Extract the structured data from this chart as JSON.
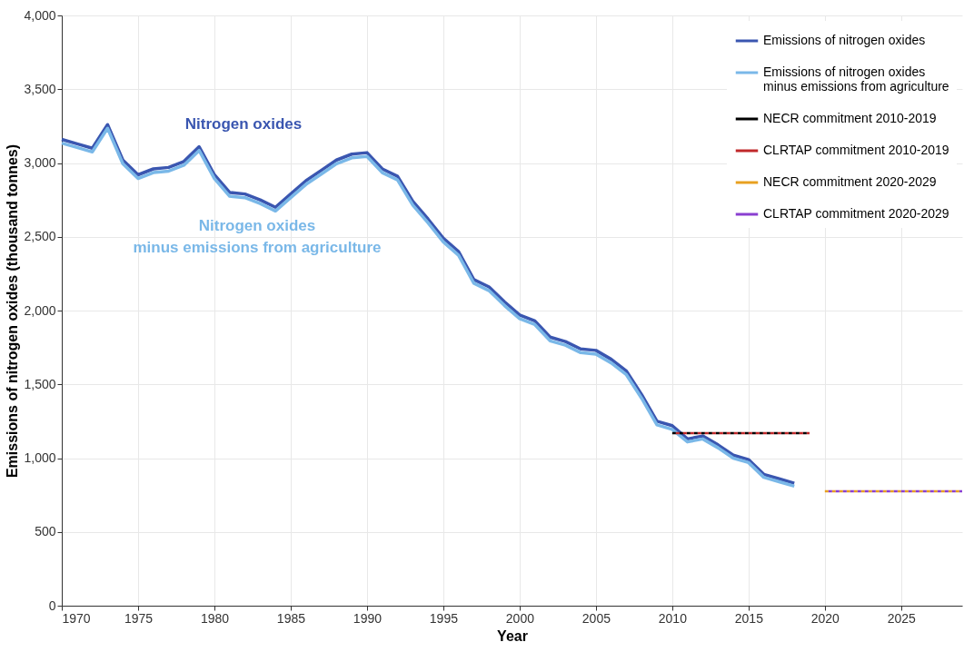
{
  "chart_data": {
    "type": "line",
    "xlabel": "Year",
    "ylabel": "Emissions of nitrogen oxides (thousand tonnes)",
    "xlim": [
      1970,
      2029
    ],
    "xticks": [
      1970,
      1975,
      1980,
      1985,
      1990,
      1995,
      2000,
      2005,
      2010,
      2015,
      2020,
      2025
    ],
    "ylim": [
      0,
      4000
    ],
    "yticks": [
      0,
      500,
      {
        "value": 1000,
        "label": "1,000"
      },
      {
        "value": 1500,
        "label": "1,500"
      },
      {
        "value": 2000,
        "label": "2,000"
      },
      {
        "value": 2500,
        "label": "2,500"
      },
      {
        "value": 3000,
        "label": "3,000"
      },
      {
        "value": 3500,
        "label": "3,500"
      },
      {
        "value": 4000,
        "label": "4,000"
      }
    ],
    "grid": true,
    "legend": "top right",
    "line_style": "solid",
    "annotations": [
      "Nitrogen oxides",
      "Nitrogen oxides\nminus emissions from agriculture"
    ],
    "x": [
      1970,
      1971,
      1972,
      1973,
      1974,
      1975,
      1976,
      1977,
      1978,
      1979,
      1980,
      1981,
      1982,
      1983,
      1984,
      1985,
      1986,
      1987,
      1988,
      1989,
      1990,
      1991,
      1992,
      1993,
      1994,
      1995,
      1996,
      1997,
      1998,
      1999,
      2000,
      2001,
      2002,
      2003,
      2004,
      2005,
      2006,
      2007,
      2008,
      2009,
      2010,
      2011,
      2012,
      2013,
      2014,
      2015,
      2016,
      2017,
      2018
    ],
    "series": [
      {
        "name": "Emissions of nitrogen oxides",
        "color": "#3a56b0",
        "values": [
          3160,
          3130,
          3100,
          3260,
          3020,
          2920,
          2960,
          2970,
          3010,
          3110,
          2920,
          2800,
          2790,
          2750,
          2700,
          2790,
          2880,
          2950,
          3020,
          3060,
          3070,
          2960,
          2910,
          2740,
          2620,
          2490,
          2400,
          2210,
          2160,
          2060,
          1970,
          1930,
          1820,
          1790,
          1740,
          1730,
          1670,
          1590,
          1430,
          1250,
          1220,
          1130,
          1150,
          1090,
          1020,
          990,
          890,
          860,
          830
        ]
      },
      {
        "name": "Emissions of nitrogen oxides\nminus emissions from agriculture",
        "color": "#7ab8e8",
        "values": [
          3135,
          3105,
          3075,
          3235,
          2995,
          2895,
          2935,
          2945,
          2985,
          3085,
          2895,
          2775,
          2765,
          2725,
          2675,
          2765,
          2855,
          2925,
          2995,
          3035,
          3045,
          2935,
          2885,
          2715,
          2595,
          2465,
          2375,
          2185,
          2135,
          2035,
          1945,
          1905,
          1795,
          1765,
          1715,
          1705,
          1645,
          1565,
          1405,
          1225,
          1195,
          1110,
          1130,
          1070,
          1000,
          970,
          870,
          840,
          810
        ]
      },
      {
        "name": "NECR commitment 2010-2019",
        "color": "#000000",
        "line_style": "dotted",
        "x": [
          2010,
          2019
        ],
        "values": [
          1170,
          1170
        ]
      },
      {
        "name": "CLRTAP commitment 2010-2019",
        "color": "#c0282a",
        "line_style": "dotted",
        "x": [
          2010,
          2019
        ],
        "values": [
          1170,
          1170
        ]
      },
      {
        "name": "NECR commitment 2020-2029",
        "color": "#e8a020",
        "line_style": "dotted",
        "x": [
          2020,
          2029
        ],
        "values": [
          775,
          775
        ]
      },
      {
        "name": "CLRTAP commitment 2020-2029",
        "color": "#8a3fd0",
        "line_style": "dotted",
        "x": [
          2020,
          2029
        ],
        "values": [
          775,
          775
        ]
      }
    ]
  }
}
